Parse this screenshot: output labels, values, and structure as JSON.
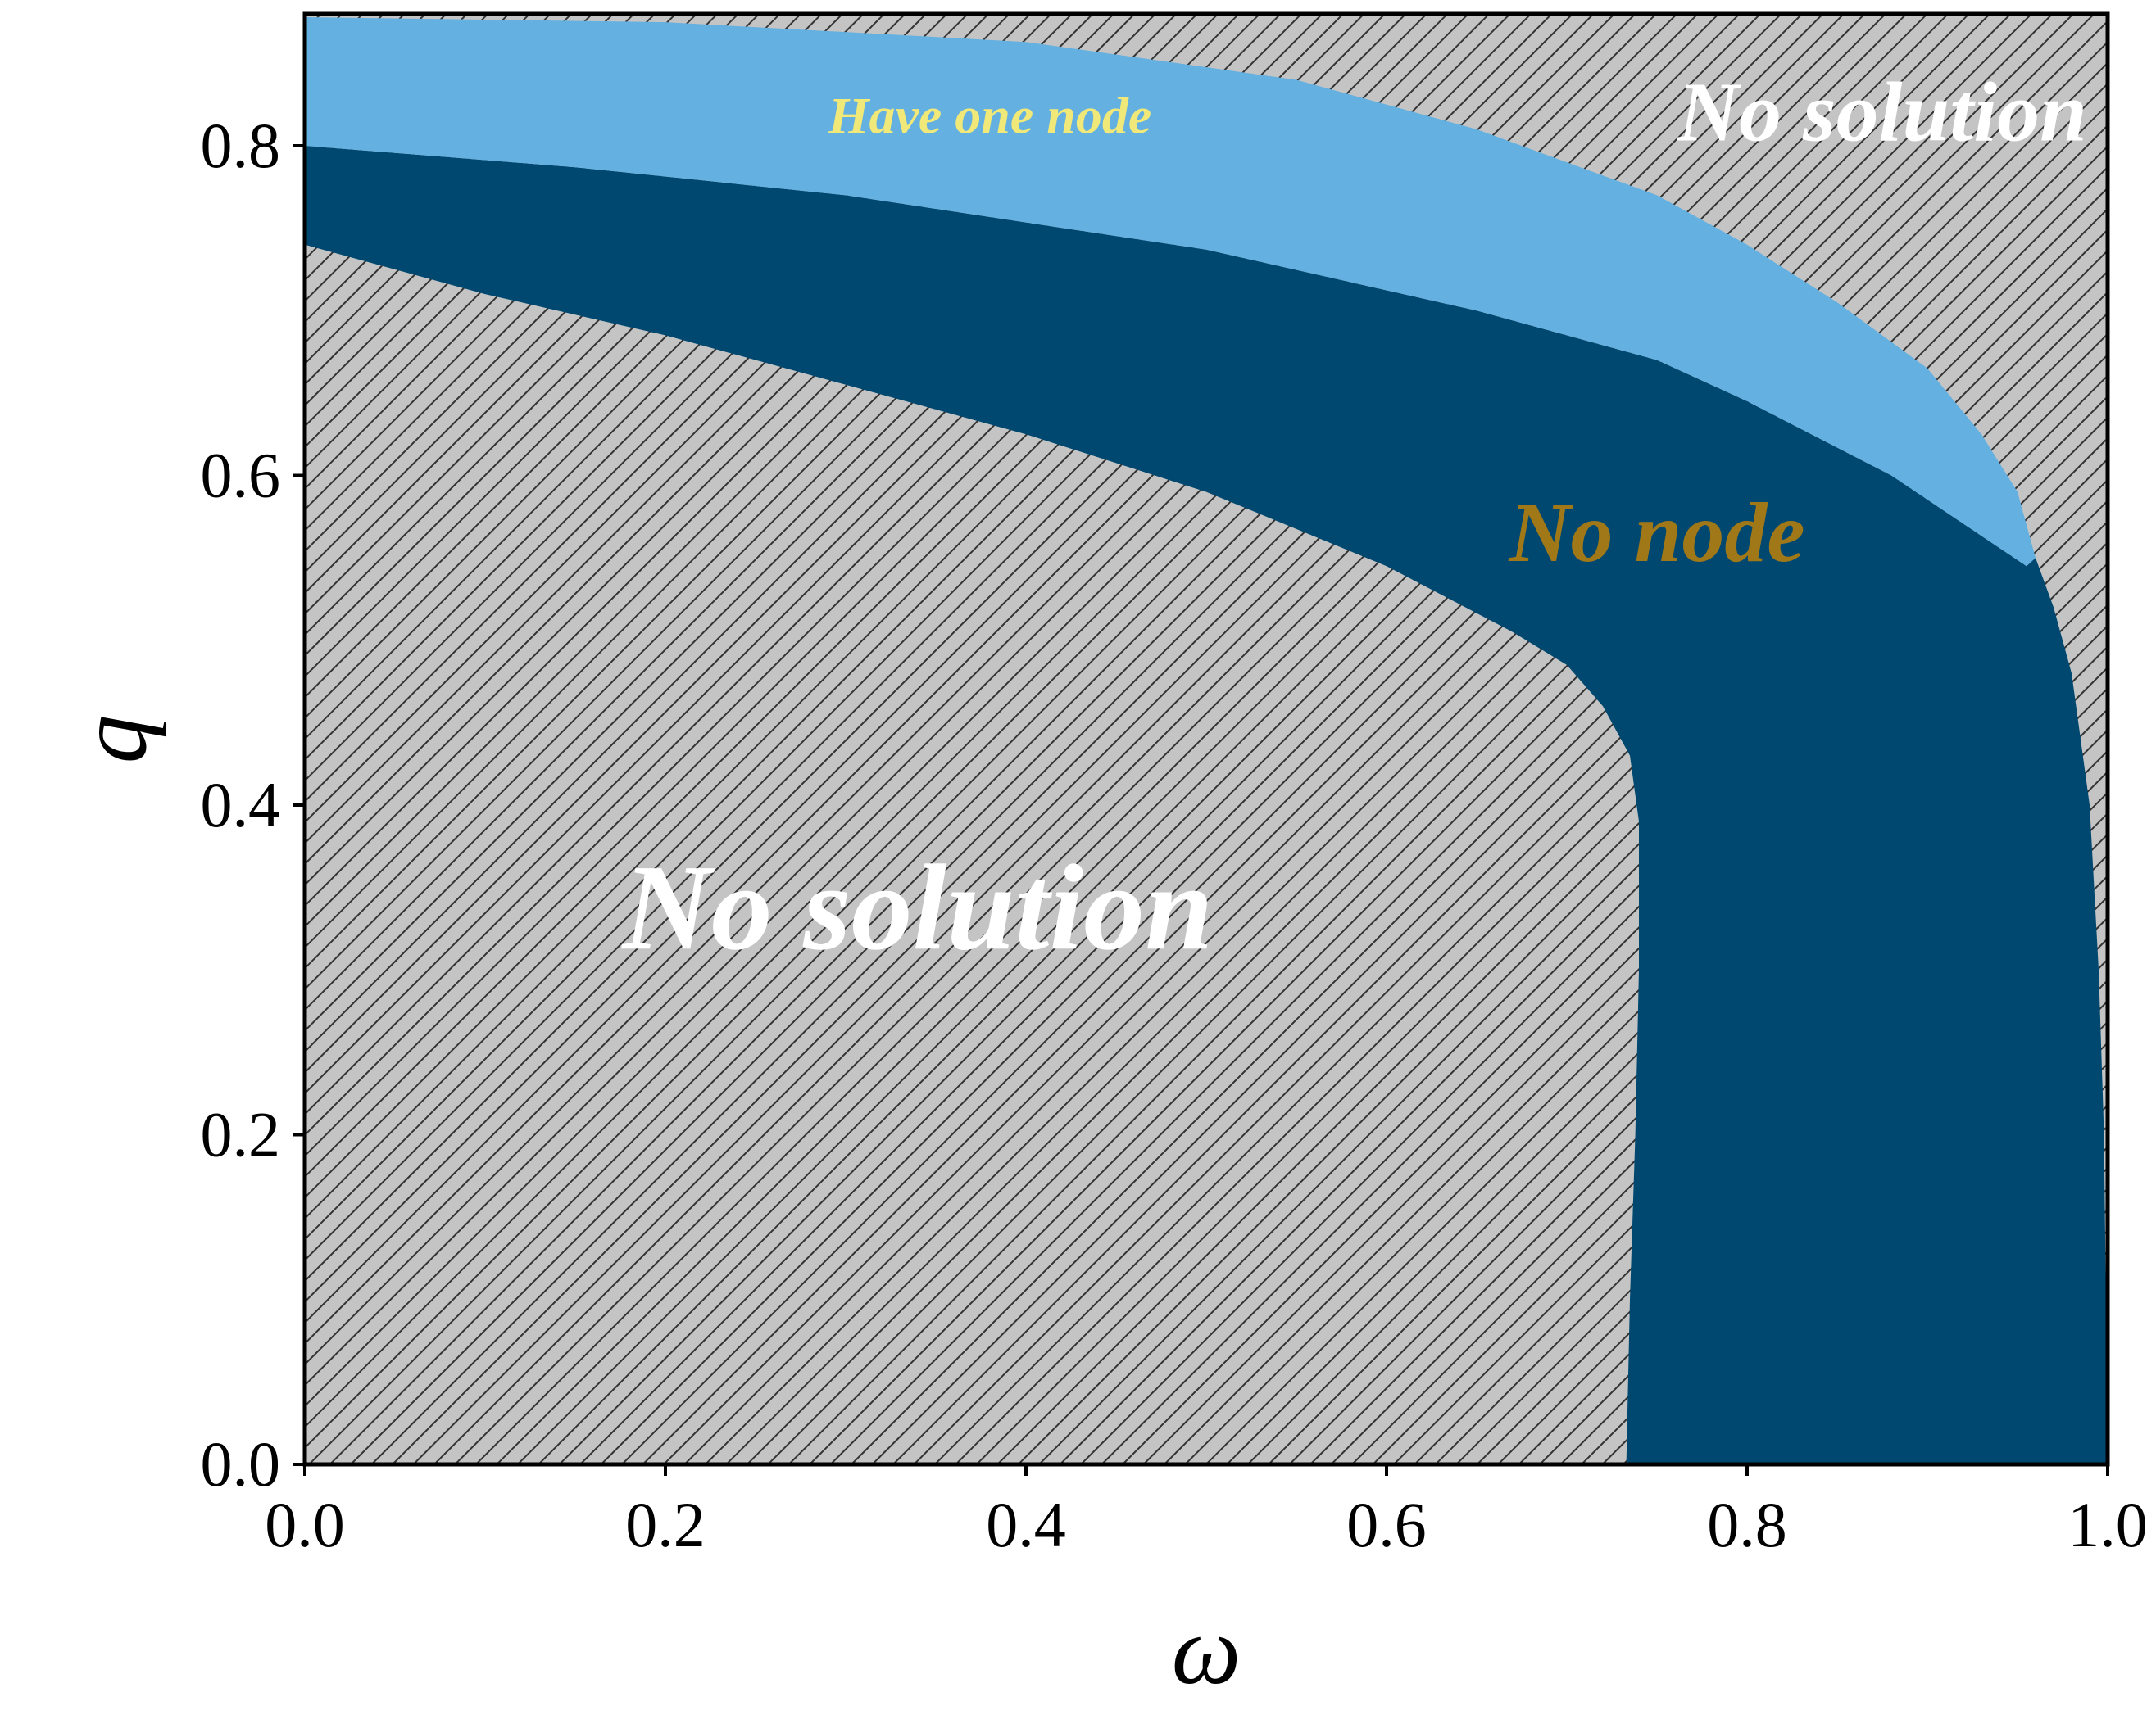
{
  "chart_data": {
    "type": "area",
    "title": "",
    "xlabel": "ω",
    "ylabel": "q",
    "xlim": [
      0.0,
      1.0
    ],
    "ylim": [
      0.0,
      0.88
    ],
    "x_ticks": [
      "0.0",
      "0.2",
      "0.4",
      "0.6",
      "0.8",
      "1.0"
    ],
    "y_ticks": [
      "0.0",
      "0.2",
      "0.4",
      "0.6",
      "0.8"
    ],
    "grid": false,
    "legend": "none",
    "colors": {
      "no_solution_fill": "#c4c4c4",
      "hatch_line": "#333333",
      "no_node": "#004870",
      "one_node": "#64b0e0",
      "label_no_solution": "#ffffff",
      "label_no_node": "#a07818",
      "label_one_node": "#f0e878"
    },
    "regions": [
      {
        "id": "no-node",
        "label": "No node",
        "boundary": [
          [
            0.0,
            0.74
          ],
          [
            0.1,
            0.71
          ],
          [
            0.2,
            0.685
          ],
          [
            0.3,
            0.655
          ],
          [
            0.4,
            0.625
          ],
          [
            0.5,
            0.59
          ],
          [
            0.6,
            0.545
          ],
          [
            0.67,
            0.505
          ],
          [
            0.7,
            0.485
          ],
          [
            0.72,
            0.46
          ],
          [
            0.735,
            0.43
          ],
          [
            0.74,
            0.39
          ],
          [
            0.74,
            0.3
          ],
          [
            0.738,
            0.2
          ],
          [
            0.735,
            0.1
          ],
          [
            0.733,
            0.0
          ],
          [
            1.0,
            0.0
          ],
          [
            0.999,
            0.1
          ],
          [
            0.998,
            0.2
          ],
          [
            0.995,
            0.3
          ],
          [
            0.99,
            0.4
          ],
          [
            0.98,
            0.48
          ],
          [
            0.97,
            0.52
          ],
          [
            0.96,
            0.55
          ],
          [
            0.955,
            0.545
          ],
          [
            0.88,
            0.6
          ],
          [
            0.8,
            0.645
          ],
          [
            0.75,
            0.67
          ],
          [
            0.65,
            0.7
          ],
          [
            0.5,
            0.737
          ],
          [
            0.3,
            0.77
          ],
          [
            0.15,
            0.787
          ],
          [
            0.0,
            0.8
          ]
        ]
      },
      {
        "id": "one-node",
        "label": "Have one node",
        "boundary": [
          [
            0.0,
            0.8
          ],
          [
            0.15,
            0.787
          ],
          [
            0.3,
            0.77
          ],
          [
            0.5,
            0.737
          ],
          [
            0.65,
            0.7
          ],
          [
            0.75,
            0.67
          ],
          [
            0.8,
            0.645
          ],
          [
            0.88,
            0.6
          ],
          [
            0.955,
            0.545
          ],
          [
            0.96,
            0.55
          ],
          [
            0.95,
            0.59
          ],
          [
            0.93,
            0.625
          ],
          [
            0.9,
            0.665
          ],
          [
            0.85,
            0.705
          ],
          [
            0.8,
            0.74
          ],
          [
            0.75,
            0.77
          ],
          [
            0.65,
            0.81
          ],
          [
            0.55,
            0.84
          ],
          [
            0.4,
            0.863
          ],
          [
            0.2,
            0.875
          ],
          [
            0.0,
            0.878
          ]
        ]
      }
    ],
    "annotations": [
      {
        "text": "No solution",
        "x": 0.34,
        "y": 0.33,
        "size": "large",
        "color": "label_no_solution"
      },
      {
        "text": "No node",
        "x": 0.75,
        "y": 0.56,
        "size": "medium",
        "color": "label_no_node"
      },
      {
        "text": "Have one node",
        "x": 0.38,
        "y": 0.815,
        "size": "small",
        "color": "label_one_node"
      },
      {
        "text": "No solution",
        "x": 0.875,
        "y": 0.815,
        "size": "medium",
        "color": "label_no_solution"
      }
    ]
  }
}
